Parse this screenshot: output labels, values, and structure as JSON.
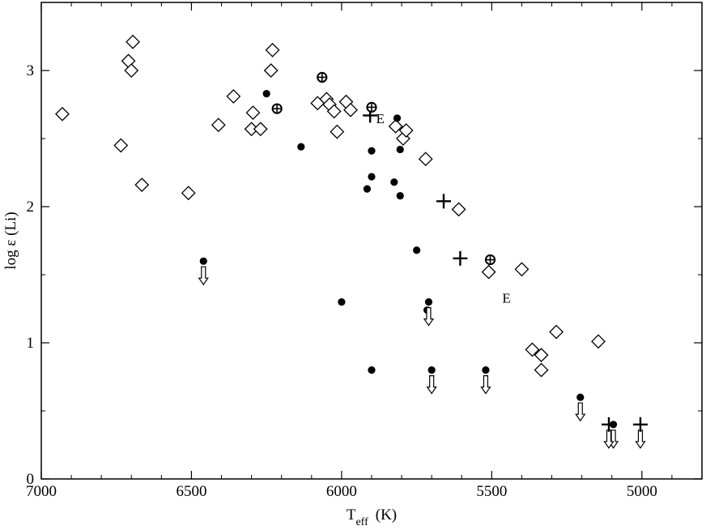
{
  "chart_data": {
    "type": "scatter",
    "title": "",
    "xlabel": {
      "main": "T",
      "sub": "eff",
      "unit": "(K)"
    },
    "ylabel": "log ε (Li)",
    "xlim": [
      7000,
      4800
    ],
    "ylim": [
      0,
      3.5
    ],
    "x_reversed": true,
    "grid": false,
    "legend": "none",
    "x_ticks": [
      7000,
      6500,
      6000,
      5500,
      5000
    ],
    "y_ticks": [
      0,
      1,
      2,
      3
    ],
    "x_tick_labels": [
      "7000",
      "6500",
      "6000",
      "5500",
      "5000"
    ],
    "y_tick_labels": [
      "0",
      "1",
      "2",
      "3"
    ],
    "series": [
      {
        "marker": "open-diamond",
        "points": [
          [
            6930,
            2.68
          ],
          [
            6735,
            2.45
          ],
          [
            6710,
            3.07
          ],
          [
            6700,
            3.0
          ],
          [
            6695,
            3.21
          ],
          [
            6665,
            2.16
          ],
          [
            6510,
            2.1
          ],
          [
            6410,
            2.6
          ],
          [
            6360,
            2.81
          ],
          [
            6300,
            2.57
          ],
          [
            6295,
            2.69
          ],
          [
            6270,
            2.57
          ],
          [
            6235,
            3.0
          ],
          [
            6230,
            3.15
          ],
          [
            6080,
            2.76
          ],
          [
            6050,
            2.79
          ],
          [
            6040,
            2.75
          ],
          [
            6025,
            2.7
          ],
          [
            6015,
            2.55
          ],
          [
            5985,
            2.77
          ],
          [
            5970,
            2.71
          ],
          [
            5820,
            2.59
          ],
          [
            5795,
            2.5
          ],
          [
            5785,
            2.56
          ],
          [
            5720,
            2.35
          ],
          [
            5610,
            1.98
          ],
          [
            5510,
            1.52
          ],
          [
            5400,
            1.54
          ],
          [
            5365,
            0.95
          ],
          [
            5335,
            0.91
          ],
          [
            5335,
            0.8
          ],
          [
            5285,
            1.08
          ],
          [
            5145,
            1.01
          ]
        ]
      },
      {
        "marker": "filled-circle",
        "points": [
          [
            6250,
            2.83
          ],
          [
            6135,
            2.44
          ],
          [
            6000,
            1.3
          ],
          [
            5915,
            2.13
          ],
          [
            5900,
            2.41
          ],
          [
            5900,
            2.22
          ],
          [
            5900,
            0.8
          ],
          [
            5825,
            2.18
          ],
          [
            5815,
            2.65
          ],
          [
            5805,
            2.42
          ],
          [
            5805,
            2.08
          ],
          [
            5750,
            1.68
          ],
          [
            5715,
            1.24
          ]
        ]
      },
      {
        "marker": "filled-circle-upper-limit",
        "points": [
          [
            6460,
            1.6
          ],
          [
            5710,
            1.3
          ],
          [
            5700,
            0.8
          ],
          [
            5520,
            0.8
          ],
          [
            5205,
            0.6
          ],
          [
            5095,
            0.4
          ]
        ]
      },
      {
        "marker": "plus",
        "points": [
          [
            5905,
            2.67
          ],
          [
            5660,
            2.04
          ],
          [
            5605,
            1.62
          ]
        ]
      },
      {
        "marker": "plus-upper-limit",
        "points": [
          [
            5110,
            0.4
          ],
          [
            5005,
            0.4
          ]
        ]
      },
      {
        "marker": "circled-plus",
        "points": [
          [
            6065,
            2.95
          ],
          [
            6215,
            2.72
          ],
          [
            5900,
            2.73
          ],
          [
            5505,
            1.61
          ]
        ]
      }
    ],
    "annotations": [
      {
        "text": "E",
        "x": 5885,
        "y": 2.65
      },
      {
        "text": "E",
        "x": 5465,
        "y": 1.33
      }
    ]
  }
}
